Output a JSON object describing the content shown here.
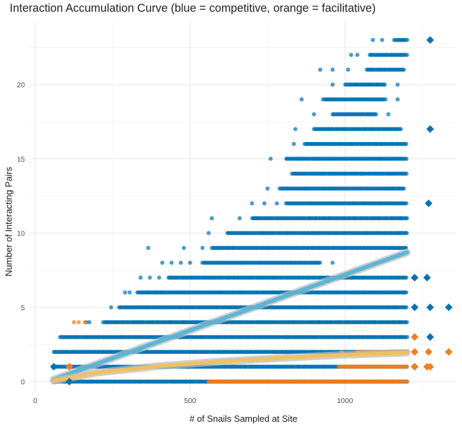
{
  "chart_data": {
    "type": "scatter",
    "title": "Interaction Accumulation Curve (blue = competitive, orange = facilitative)",
    "xlabel": "# of Snails Sampled at Site",
    "ylabel": "Number of Interacting Pairs",
    "xlim": [
      -20,
      1360
    ],
    "ylim": [
      -0.7,
      24.2
    ],
    "x_ticks": [
      0,
      500,
      1000
    ],
    "y_ticks": [
      0,
      5,
      10,
      15,
      20
    ],
    "grid": true,
    "legend": "none",
    "colors": {
      "competitive": "#0072b2",
      "facilitative": "#e69f00",
      "facilitative_points": "#f07f1e",
      "competitive_trend": "#56b4d3",
      "facilitative_trend": "#f0c060"
    },
    "series": [
      {
        "kind": "points",
        "color_key": "competitive",
        "rows": [
          {
            "y": 0,
            "xmin": 60,
            "xmax": 1200
          },
          {
            "y": 1,
            "xmin": 60,
            "xmax": 1200
          },
          {
            "y": 2,
            "xmin": 60,
            "xmax": 1200
          },
          {
            "y": 3,
            "xmin": 80,
            "xmax": 1200
          },
          {
            "y": 4,
            "xmin": 220,
            "xmax": 1200,
            "extra": [
              165,
              175
            ]
          },
          {
            "y": 5,
            "xmin": 270,
            "xmax": 1200,
            "extra": [
              245
            ]
          },
          {
            "y": 6,
            "xmin": 330,
            "xmax": 1200,
            "extra": [
              290,
              305
            ]
          },
          {
            "y": 7,
            "xmin": 430,
            "xmax": 1200,
            "extra": [
              340,
              370,
              400
            ]
          },
          {
            "y": 8,
            "xmin": 540,
            "xmax": 920,
            "extra": [
              410,
              440,
              470,
              500,
              960
            ]
          },
          {
            "y": 9,
            "xmin": 570,
            "xmax": 1200,
            "extra": [
              365,
              480,
              540
            ]
          },
          {
            "y": 10,
            "xmin": 620,
            "xmax": 1200,
            "extra": [
              560
            ]
          },
          {
            "y": 11,
            "xmin": 700,
            "xmax": 1200,
            "extra": [
              570,
              660
            ]
          },
          {
            "y": 12,
            "xmin": 810,
            "xmax": 1200,
            "extra": [
              700,
              740,
              780
            ]
          },
          {
            "y": 13,
            "xmin": 790,
            "xmax": 1190,
            "extra": [
              750
            ]
          },
          {
            "y": 14,
            "xmin": 830,
            "xmax": 1200
          },
          {
            "y": 15,
            "xmin": 810,
            "xmax": 1200,
            "extra": [
              760
            ]
          },
          {
            "y": 16,
            "xmin": 870,
            "xmax": 1200,
            "extra": [
              835
            ]
          },
          {
            "y": 17,
            "xmin": 900,
            "xmax": 1180,
            "extra": [
              840
            ]
          },
          {
            "y": 18,
            "xmin": 960,
            "xmax": 1100,
            "extra": [
              900,
              1140
            ]
          },
          {
            "y": 19,
            "xmin": 930,
            "xmax": 1130,
            "extra": [
              860,
              1170
            ]
          },
          {
            "y": 20,
            "xmin": 1000,
            "xmax": 1130,
            "extra": [
              960,
              1170
            ]
          },
          {
            "y": 21,
            "xmin": 1070,
            "xmax": 1190,
            "extra": [
              920,
              960,
              1010
            ]
          },
          {
            "y": 22,
            "xmin": 1080,
            "xmax": 1200,
            "extra": [
              1020,
              1040
            ]
          },
          {
            "y": 23,
            "xmin": 1160,
            "xmax": 1200,
            "extra": [
              1090,
              1120
            ]
          }
        ]
      },
      {
        "kind": "points",
        "color_key": "facilitative",
        "rows": [
          {
            "y": 0,
            "xmin": 560,
            "xmax": 1200
          },
          {
            "y": 1,
            "xmin": 980,
            "xmax": 1200,
            "extra": [
              110
            ]
          },
          {
            "y": 2,
            "xmin": 1040,
            "xmax": 1200,
            "extra": [
              990
            ]
          },
          {
            "y": 4,
            "xmin": 140,
            "xmax": 140,
            "extra": [
              125,
              160
            ]
          }
        ]
      },
      {
        "kind": "trend",
        "name": "competitive",
        "color_key": "competitive_trend",
        "x": [
          60,
          1200
        ],
        "y": [
          0.15,
          8.7
        ]
      },
      {
        "kind": "trend",
        "name": "facilitative",
        "color_key": "facilitative_trend",
        "x": [
          60,
          200,
          400,
          600,
          800,
          1000,
          1200
        ],
        "y": [
          0.05,
          0.6,
          1.05,
          1.35,
          1.6,
          1.8,
          1.95
        ]
      },
      {
        "kind": "diamonds",
        "color_key": "competitive",
        "points": [
          {
            "x": 60,
            "y": 1
          },
          {
            "x": 110,
            "y": 0
          },
          {
            "x": 1225,
            "y": 5
          },
          {
            "x": 1225,
            "y": 7
          },
          {
            "x": 1225,
            "y": 1
          },
          {
            "x": 1265,
            "y": 7
          },
          {
            "x": 1275,
            "y": 23
          },
          {
            "x": 1275,
            "y": 17
          },
          {
            "x": 1270,
            "y": 12
          },
          {
            "x": 1275,
            "y": 5
          },
          {
            "x": 1275,
            "y": 3
          },
          {
            "x": 1335,
            "y": 5
          }
        ]
      },
      {
        "kind": "diamonds",
        "color_key": "facilitative",
        "points": [
          {
            "x": 110,
            "y": 1
          },
          {
            "x": 1225,
            "y": 3
          },
          {
            "x": 1225,
            "y": 2
          },
          {
            "x": 1225,
            "y": 1
          },
          {
            "x": 1270,
            "y": 2
          },
          {
            "x": 1265,
            "y": 1
          },
          {
            "x": 1275,
            "y": 1
          },
          {
            "x": 1335,
            "y": 2
          }
        ]
      }
    ]
  }
}
